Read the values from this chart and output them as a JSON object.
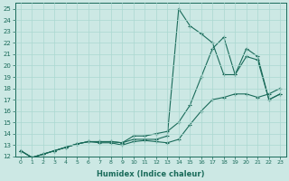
{
  "xlabel": "Humidex (Indice chaleur)",
  "ylabel": "",
  "bg_color": "#cce8e4",
  "line_color": "#1a6b5a",
  "grid_color": "#aad8d0",
  "xlim": [
    -0.5,
    23.5
  ],
  "ylim": [
    12,
    25.5
  ],
  "xticks": [
    0,
    1,
    2,
    3,
    4,
    5,
    6,
    7,
    8,
    9,
    10,
    11,
    12,
    13,
    14,
    15,
    16,
    17,
    18,
    19,
    20,
    21,
    22,
    23
  ],
  "yticks": [
    12,
    13,
    14,
    15,
    16,
    17,
    18,
    19,
    20,
    21,
    22,
    23,
    24,
    25
  ],
  "lines": [
    {
      "x": [
        0,
        1,
        2,
        3,
        4,
        5,
        6,
        7,
        8,
        9,
        10,
        11,
        12,
        13,
        14,
        15,
        16,
        17,
        18,
        19,
        20,
        21,
        22,
        23
      ],
      "y": [
        12.5,
        11.9,
        12.2,
        12.5,
        12.8,
        13.1,
        13.3,
        13.2,
        13.2,
        13.0,
        13.3,
        13.4,
        13.3,
        13.2,
        13.5,
        14.8,
        16.0,
        17.0,
        17.2,
        17.5,
        17.5,
        17.2,
        17.5,
        18.0
      ]
    },
    {
      "x": [
        0,
        1,
        2,
        3,
        4,
        5,
        6,
        7,
        8,
        9,
        10,
        11,
        12,
        13,
        14,
        15,
        16,
        17,
        18,
        19,
        20,
        21,
        22,
        23
      ],
      "y": [
        12.5,
        11.9,
        12.2,
        12.5,
        12.8,
        13.1,
        13.3,
        13.3,
        13.3,
        13.2,
        13.8,
        13.8,
        14.0,
        14.2,
        15.0,
        16.5,
        19.0,
        21.5,
        22.5,
        19.2,
        21.5,
        20.8,
        17.0,
        17.5
      ]
    },
    {
      "x": [
        0,
        1,
        2,
        3,
        4,
        5,
        6,
        7,
        8,
        9,
        10,
        11,
        12,
        13,
        14,
        15,
        16,
        17,
        18,
        19,
        20,
        21,
        22,
        23
      ],
      "y": [
        12.5,
        11.9,
        12.2,
        12.5,
        12.8,
        13.1,
        13.3,
        13.3,
        13.3,
        13.2,
        13.5,
        13.5,
        13.5,
        13.8,
        25.0,
        23.5,
        22.8,
        22.0,
        19.2,
        19.2,
        20.8,
        20.5,
        17.0,
        17.5
      ]
    }
  ]
}
